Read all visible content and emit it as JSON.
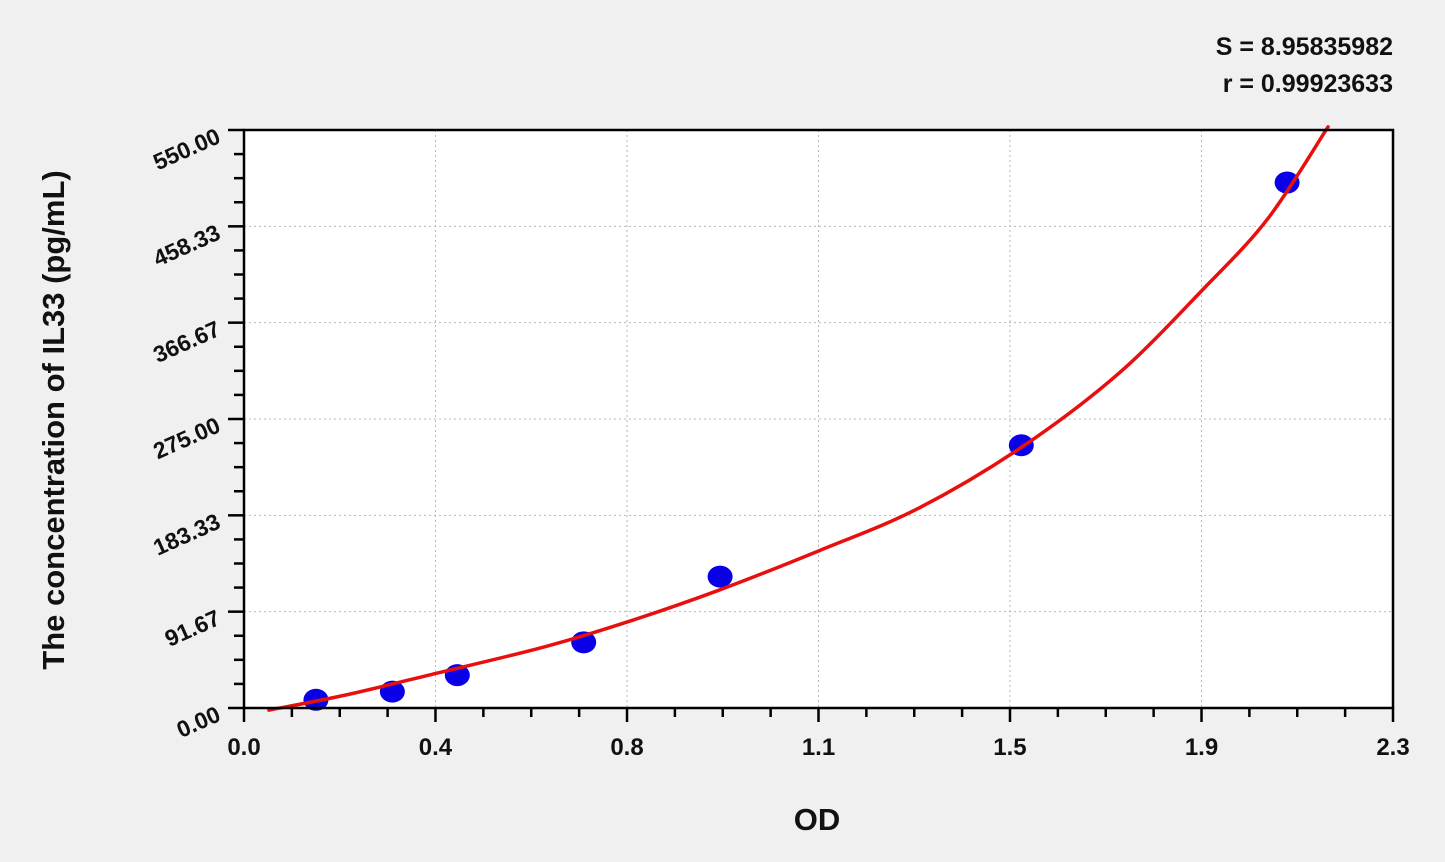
{
  "chart_data": {
    "type": "scatter",
    "title": "",
    "xlabel": "OD",
    "ylabel": "The concentration of IL33 (pg/mL)",
    "xlim": [
      0,
      2.3
    ],
    "ylim": [
      0,
      550
    ],
    "x_tick_values": [
      0,
      0.3833,
      0.7667,
      1.15,
      1.5333,
      1.9167,
      2.3
    ],
    "x_tick_labels": [
      "0.0",
      "0.4",
      "0.8",
      "1.1",
      "1.5",
      "1.9",
      "2.3"
    ],
    "y_tick_values": [
      0,
      91.67,
      183.33,
      275,
      366.67,
      458.33,
      550
    ],
    "y_tick_labels": [
      "0.00",
      "91.67",
      "183.33",
      "275.00",
      "366.67",
      "458.33",
      "550.00"
    ],
    "grid": true,
    "annotations": {
      "s": "S = 8.95835982",
      "r": "r = 0.99923633"
    },
    "points": {
      "color": "#0a00e8",
      "x": [
        0.144,
        0.297,
        0.427,
        0.68,
        0.953,
        1.556,
        2.088
      ],
      "y": [
        7.8,
        15.6,
        31.25,
        62.5,
        125,
        250,
        500
      ]
    },
    "fit_curve": {
      "color": "#e8100e",
      "x": [
        0.05,
        0.2,
        0.385,
        0.6,
        0.768,
        0.95,
        1.153,
        1.35,
        1.556,
        1.75,
        1.919,
        2.05,
        2.17
      ],
      "y": [
        -2,
        12,
        33,
        58,
        82,
        112,
        150,
        190,
        248,
        318,
        398,
        466,
        553
      ]
    }
  }
}
